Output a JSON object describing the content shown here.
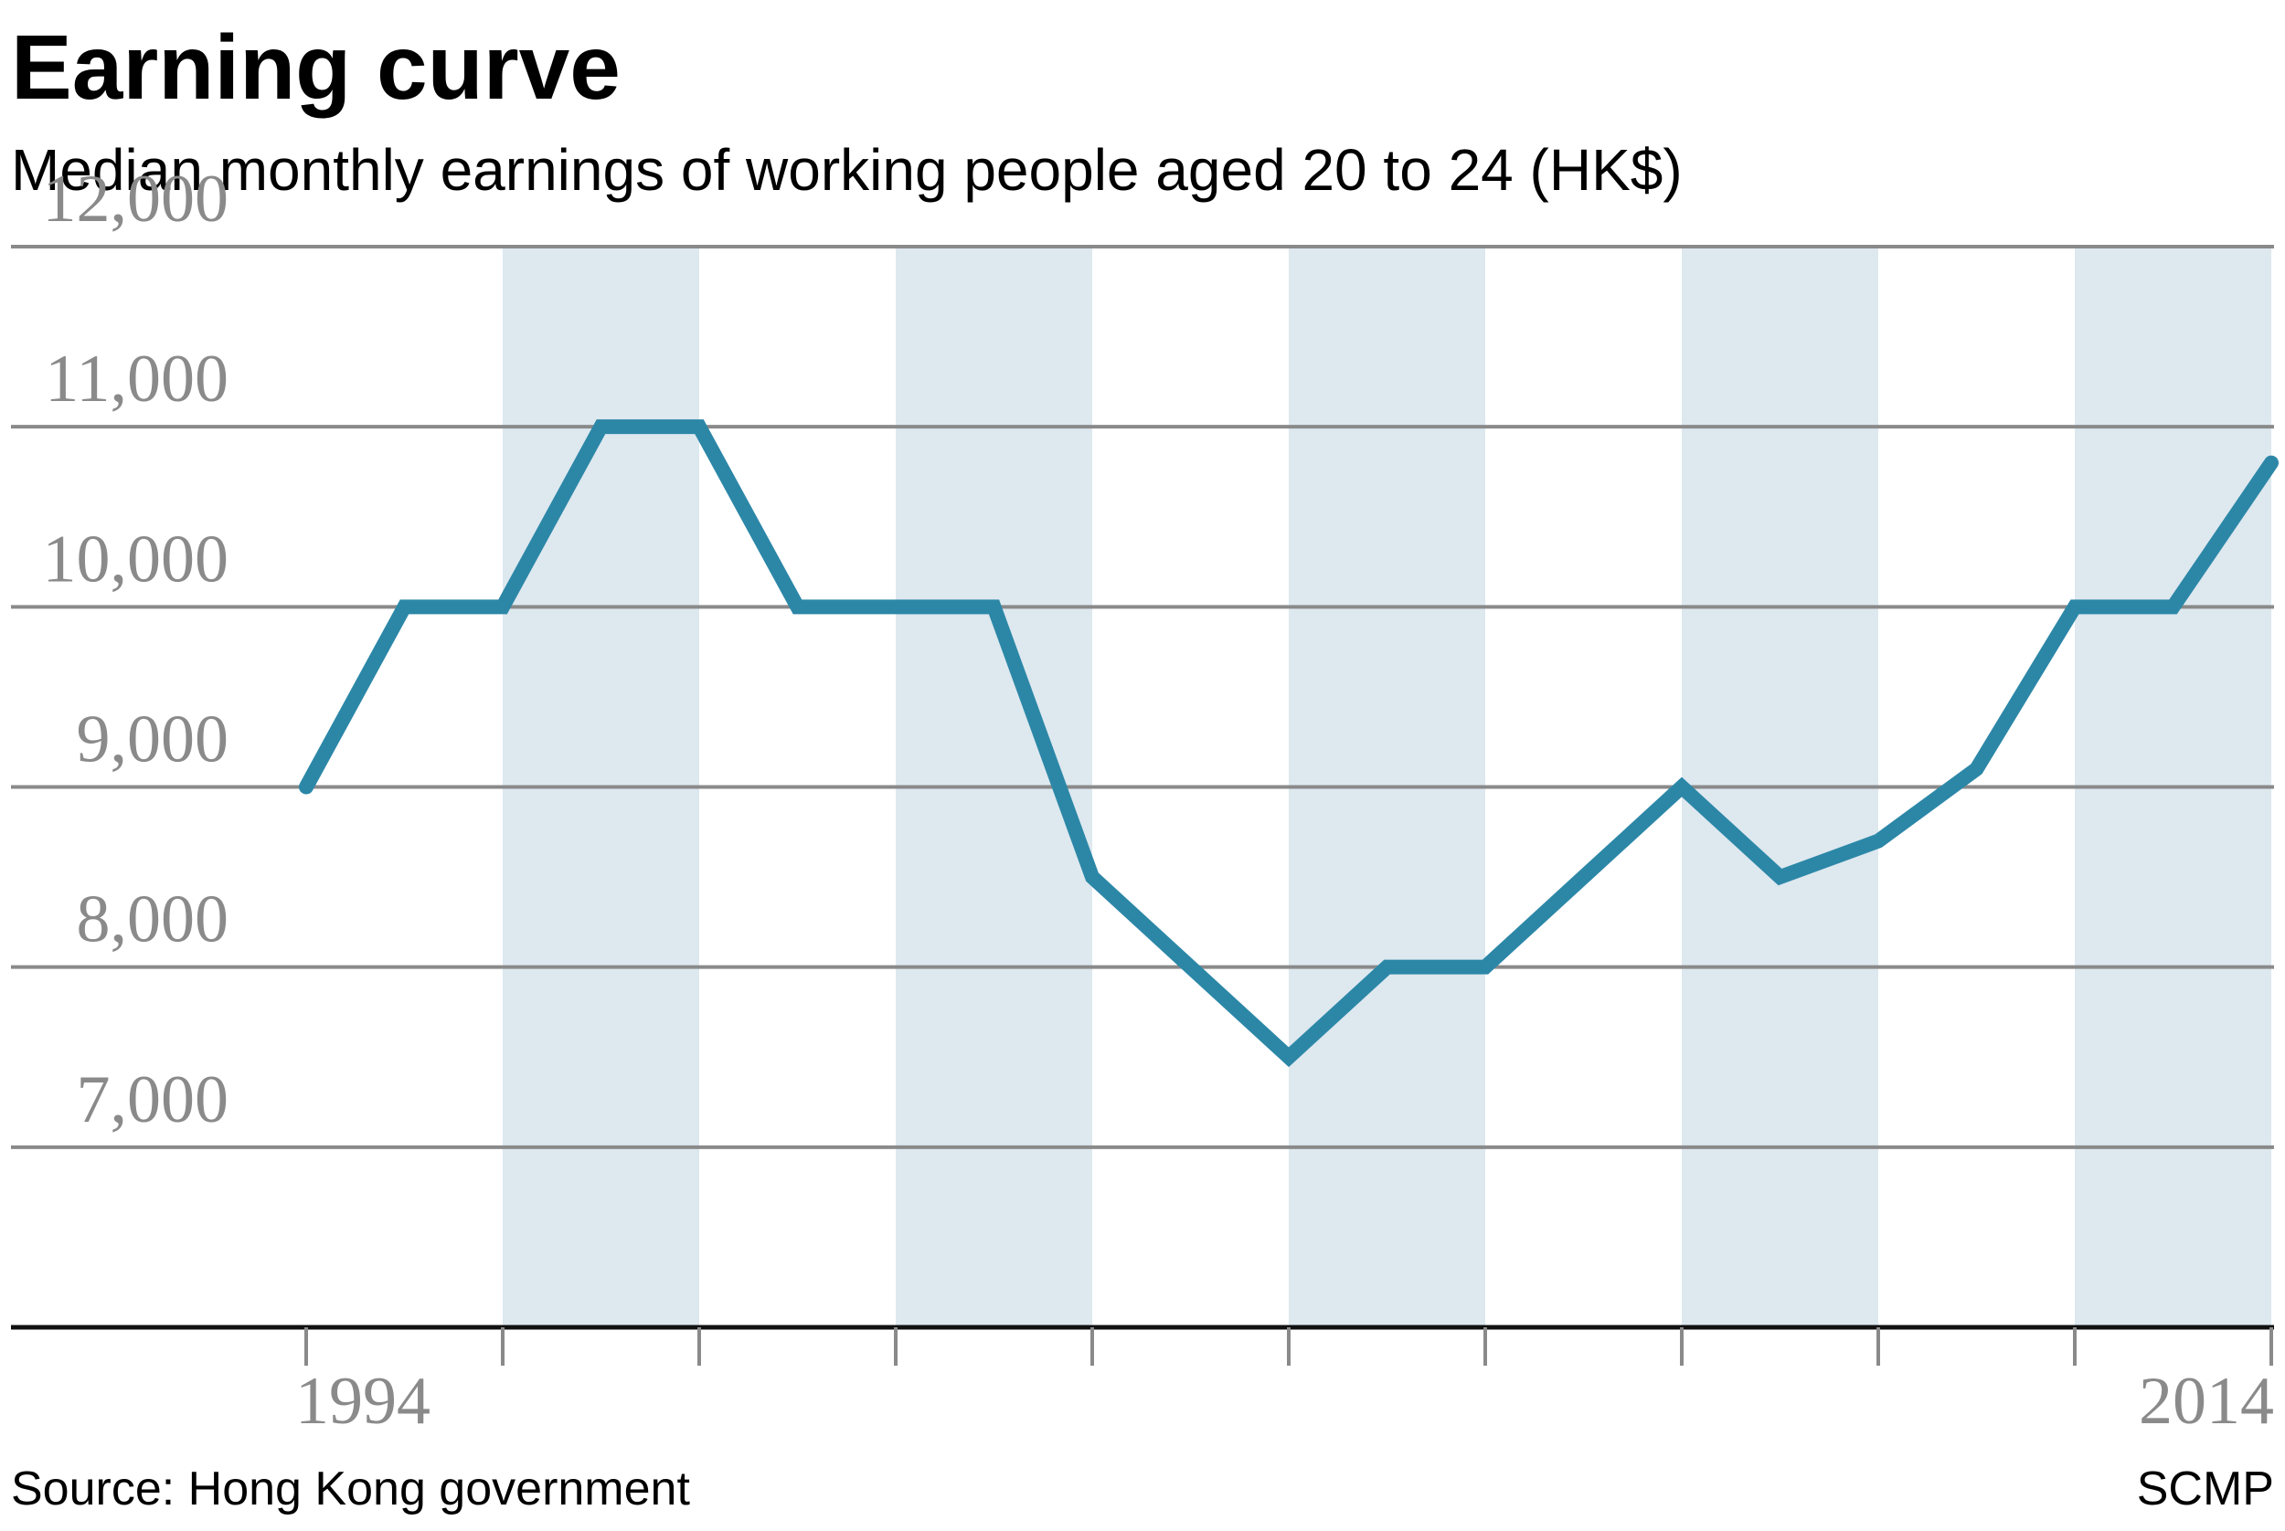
{
  "chart_data": {
    "type": "line",
    "title": "Earning curve",
    "subtitle": "Median monthly earnings of working people aged 20 to 24 (HK$)",
    "x": [
      1994,
      1995,
      1996,
      1997,
      1998,
      1999,
      2000,
      2001,
      2002,
      2003,
      2004,
      2005,
      2006,
      2007,
      2008,
      2009,
      2010,
      2011,
      2012,
      2013,
      2014
    ],
    "series": [
      {
        "values": [
          9000,
          10000,
          10000,
          11000,
          11000,
          10000,
          10000,
          10000,
          8500,
          8000,
          7500,
          8000,
          8000,
          8500,
          9000,
          8500,
          8700,
          9100,
          10000,
          10000,
          10800
        ]
      }
    ],
    "ylim": [
      6000,
      12000
    ],
    "yticks": [
      7000,
      8000,
      9000,
      10000,
      11000,
      12000
    ],
    "ytick_labels": [
      "7,000",
      "8,000",
      "9,000",
      "10,000",
      "11,000",
      "12,000"
    ],
    "xlim": [
      1994,
      2014
    ],
    "xtick_labels": [
      {
        "x": 1994,
        "label": "1994"
      },
      {
        "x": 2014,
        "label": "2014"
      }
    ],
    "shaded_bands": [
      [
        1996,
        1998
      ],
      [
        2000,
        2002
      ],
      [
        2004,
        2006
      ],
      [
        2008,
        2010
      ],
      [
        2012,
        2014
      ]
    ],
    "grid": true,
    "source": "Source: Hong Kong government",
    "credit": "SCMP",
    "colors": {
      "line": "#2c87a7",
      "band": "#dde8ef",
      "grid": "#8a8a8a",
      "axis": "#111111",
      "tick_text": "#8a8a8a"
    }
  }
}
